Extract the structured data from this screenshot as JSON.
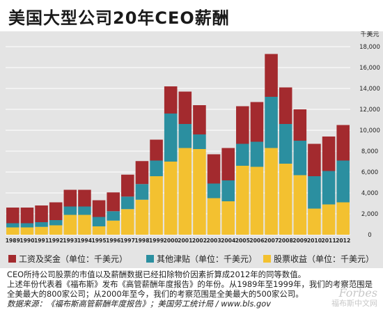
{
  "title": "美国大型公司20年CEO薪酬",
  "chart_data": {
    "type": "bar",
    "stacked": true,
    "unit_label": "千美元",
    "ylim": [
      0,
      18000
    ],
    "yticks": [
      0,
      2000,
      4000,
      6000,
      8000,
      10000,
      12000,
      14000,
      16000,
      18000
    ],
    "grid": true,
    "categories": [
      "1989",
      "1990",
      "1991",
      "1992",
      "1993",
      "1994",
      "1995",
      "1996",
      "1997",
      "1998",
      "1999",
      "2000",
      "2001",
      "2002",
      "2003",
      "2004",
      "2005",
      "2006",
      "2007",
      "2008",
      "2009",
      "2010",
      "2011",
      "2012"
    ],
    "series": [
      {
        "name": "股票收益（单位：千美元）",
        "color": "#f3c130",
        "values": [
          700,
          700,
          750,
          900,
          1900,
          1900,
          800,
          1350,
          2450,
          3350,
          5600,
          7000,
          8300,
          8200,
          3500,
          3200,
          6600,
          6500,
          8300,
          6800,
          5700,
          2500,
          2900,
          3100
        ]
      },
      {
        "name": "其他津贴（单位：千美元）",
        "color": "#2b8fa0",
        "values": [
          400,
          400,
          450,
          500,
          800,
          800,
          900,
          900,
          1200,
          1500,
          1500,
          4600,
          2300,
          1400,
          1400,
          2000,
          2100,
          2400,
          4900,
          3800,
          3300,
          3100,
          3200,
          4000
        ]
      },
      {
        "name": "工资及奖金（单位：千美元）",
        "color": "#a32a2e",
        "values": [
          1500,
          1500,
          1600,
          1700,
          1600,
          1600,
          1600,
          1800,
          2100,
          2200,
          2000,
          2600,
          3100,
          2800,
          2800,
          3100,
          3600,
          3800,
          4100,
          3500,
          3000,
          3100,
          3300,
          3400
        ]
      }
    ]
  },
  "legend": [
    {
      "label": "工资及奖金（单位：千美元）",
      "color": "#a32a2e"
    },
    {
      "label": "其他津贴（单位：千美元）",
      "color": "#2b8fa0"
    },
    {
      "label": "股票收益（单位：千美元）",
      "color": "#f3c130"
    }
  ],
  "notes": {
    "line1": "CEO所持公司股票的市值以及薪酬数据已经扣除物价因素折算成2012年的同等数值。",
    "line2": "上述年份代表着《福布斯》发布《高管薪酬年度报告》的年份。从1989年至1999年，我们的考察范围是",
    "line3": "全美最大的800家公司；从2000年至今，我们的考察范围是全美最大的500家公司。",
    "source": "数据来源：《福布斯高管薪酬年度报告》；美国劳工统计局 / www.bls.gov"
  },
  "watermark": {
    "line1": "Forbes",
    "line2": "福布斯中文网"
  }
}
